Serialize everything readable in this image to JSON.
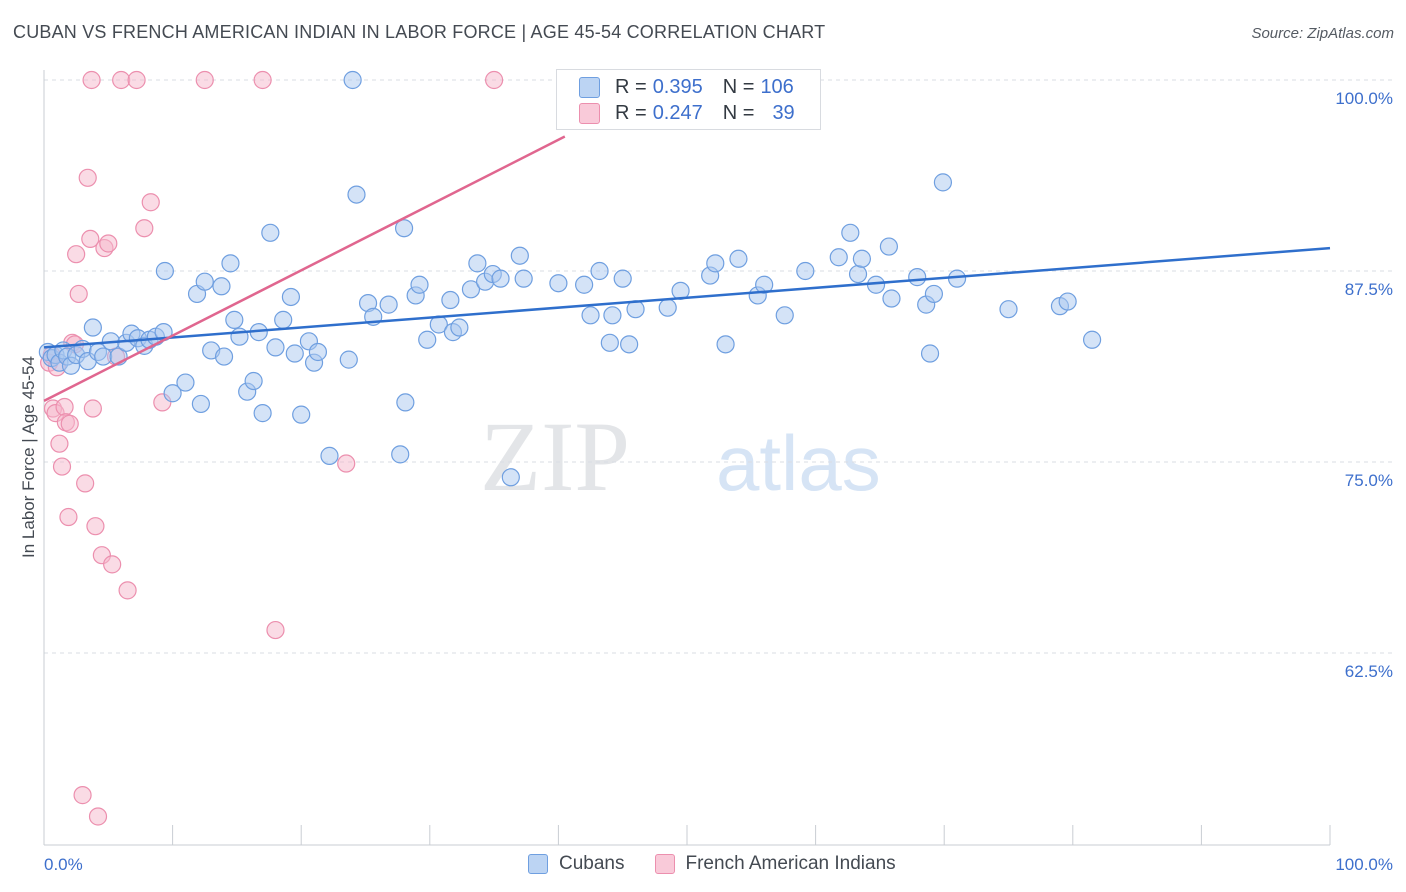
{
  "title": "CUBAN VS FRENCH AMERICAN INDIAN IN LABOR FORCE | AGE 45-54 CORRELATION CHART",
  "source": "Source: ZipAtlas.com",
  "watermark": {
    "zip": "ZIP",
    "atlas": "atlas"
  },
  "colors": {
    "cuban_fill": "#a9c8ef",
    "cuban_stroke": "#6f9fe0",
    "cuban_line": "#2f6fcc",
    "french_fill": "#f6b8cb",
    "french_stroke": "#ec8fae",
    "french_line": "#e0668f",
    "tick_label": "#3d6fcc",
    "grid": "#d9dde3"
  },
  "inset_legend": {
    "r_label": "R =",
    "n_label": "N =",
    "rows": [
      {
        "r": "0.395",
        "n": "106",
        "series": "Cubans"
      },
      {
        "r": "0.247",
        "n": "39",
        "series": "French American Indians"
      }
    ]
  },
  "bottom_legend": [
    "Cubans",
    "French American Indians"
  ],
  "chart_data": {
    "type": "scatter",
    "title": "CUBAN VS FRENCH AMERICAN INDIAN IN LABOR FORCE | AGE 45-54 CORRELATION CHART",
    "xlabel": "",
    "ylabel": "In Labor Force | Age 45-54",
    "xlim": [
      0,
      100
    ],
    "ylim": [
      51.5,
      102
    ],
    "x_tick_labels": [
      {
        "value": 0,
        "label": "0.0%"
      },
      {
        "value": 100,
        "label": "100.0%"
      }
    ],
    "y_tick_labels": [
      {
        "value": 100,
        "label": "100.0%"
      },
      {
        "value": 87.5,
        "label": "87.5%"
      },
      {
        "value": 75,
        "label": "75.0%"
      },
      {
        "value": 62.5,
        "label": "62.5%"
      }
    ],
    "grid": "horizontal dashed",
    "legend_placement": "bottom-center",
    "series": [
      {
        "name": "Cubans",
        "r": 0.395,
        "n": 106,
        "trend": {
          "x": [
            0,
            100
          ],
          "y": [
            82.5,
            89.0
          ]
        },
        "points": [
          [
            0.3,
            82.2
          ],
          [
            0.6,
            81.8
          ],
          [
            0.9,
            82.0
          ],
          [
            1.2,
            81.5
          ],
          [
            1.5,
            82.3
          ],
          [
            1.8,
            81.9
          ],
          [
            2.1,
            81.3
          ],
          [
            2.5,
            82.0
          ],
          [
            3.0,
            82.4
          ],
          [
            3.4,
            81.6
          ],
          [
            3.8,
            83.8
          ],
          [
            4.2,
            82.2
          ],
          [
            4.6,
            81.9
          ],
          [
            5.2,
            82.9
          ],
          [
            5.8,
            81.9
          ],
          [
            6.4,
            82.8
          ],
          [
            6.8,
            83.4
          ],
          [
            7.3,
            83.1
          ],
          [
            7.8,
            82.6
          ],
          [
            8.2,
            83.0
          ],
          [
            8.7,
            83.2
          ],
          [
            9.3,
            83.5
          ],
          [
            9.4,
            87.5
          ],
          [
            10.0,
            79.5
          ],
          [
            11.0,
            80.2
          ],
          [
            11.9,
            86.0
          ],
          [
            12.2,
            78.8
          ],
          [
            12.5,
            86.8
          ],
          [
            13.0,
            82.3
          ],
          [
            13.8,
            86.5
          ],
          [
            14.0,
            81.9
          ],
          [
            14.5,
            88.0
          ],
          [
            14.8,
            84.3
          ],
          [
            15.2,
            83.2
          ],
          [
            15.8,
            79.6
          ],
          [
            16.3,
            80.3
          ],
          [
            16.7,
            83.5
          ],
          [
            17.0,
            78.2
          ],
          [
            17.6,
            90.0
          ],
          [
            18.0,
            82.5
          ],
          [
            18.6,
            84.3
          ],
          [
            19.2,
            85.8
          ],
          [
            19.5,
            82.1
          ],
          [
            20.0,
            78.1
          ],
          [
            20.6,
            82.9
          ],
          [
            21.0,
            81.5
          ],
          [
            21.3,
            82.2
          ],
          [
            22.2,
            75.4
          ],
          [
            23.7,
            81.7
          ],
          [
            24.0,
            100.0
          ],
          [
            24.3,
            92.5
          ],
          [
            25.2,
            85.4
          ],
          [
            25.6,
            84.5
          ],
          [
            26.8,
            85.3
          ],
          [
            27.7,
            75.5
          ],
          [
            28.0,
            90.3
          ],
          [
            28.1,
            78.9
          ],
          [
            28.9,
            85.9
          ],
          [
            29.2,
            86.6
          ],
          [
            29.8,
            83.0
          ],
          [
            30.7,
            84.0
          ],
          [
            31.6,
            85.6
          ],
          [
            31.8,
            83.5
          ],
          [
            32.3,
            83.8
          ],
          [
            33.2,
            86.3
          ],
          [
            33.7,
            88.0
          ],
          [
            34.3,
            86.8
          ],
          [
            34.9,
            87.3
          ],
          [
            35.5,
            87.0
          ],
          [
            36.3,
            74.0
          ],
          [
            37.0,
            88.5
          ],
          [
            37.3,
            87.0
          ],
          [
            40.0,
            86.7
          ],
          [
            42.0,
            86.6
          ],
          [
            42.5,
            84.6
          ],
          [
            43.2,
            87.5
          ],
          [
            44.0,
            82.8
          ],
          [
            44.2,
            84.6
          ],
          [
            45.0,
            87.0
          ],
          [
            45.5,
            82.7
          ],
          [
            46.0,
            85.0
          ],
          [
            48.5,
            85.1
          ],
          [
            49.5,
            86.2
          ],
          [
            51.8,
            87.2
          ],
          [
            52.2,
            88.0
          ],
          [
            53.0,
            82.7
          ],
          [
            54.0,
            88.3
          ],
          [
            55.5,
            85.9
          ],
          [
            56.0,
            86.6
          ],
          [
            57.6,
            84.6
          ],
          [
            59.2,
            87.5
          ],
          [
            61.8,
            88.4
          ],
          [
            62.7,
            90.0
          ],
          [
            63.3,
            87.3
          ],
          [
            63.6,
            88.3
          ],
          [
            64.7,
            86.6
          ],
          [
            65.7,
            89.1
          ],
          [
            65.9,
            85.7
          ],
          [
            67.9,
            87.1
          ],
          [
            68.6,
            85.3
          ],
          [
            68.9,
            82.1
          ],
          [
            69.2,
            86.0
          ],
          [
            69.9,
            93.3
          ],
          [
            71.0,
            87.0
          ],
          [
            75.0,
            85.0
          ],
          [
            79.0,
            85.2
          ],
          [
            79.6,
            85.5
          ],
          [
            81.5,
            83.0
          ]
        ]
      },
      {
        "name": "French American Indians",
        "r": 0.247,
        "n": 39,
        "trend": {
          "x": [
            0,
            40.5
          ],
          "y": [
            79.0,
            96.3
          ]
        },
        "points": [
          [
            0.4,
            81.5
          ],
          [
            0.6,
            82.0
          ],
          [
            0.7,
            78.5
          ],
          [
            0.9,
            78.2
          ],
          [
            1.0,
            81.2
          ],
          [
            1.2,
            76.2
          ],
          [
            1.4,
            74.7
          ],
          [
            1.6,
            78.6
          ],
          [
            1.7,
            77.6
          ],
          [
            1.9,
            71.4
          ],
          [
            2.0,
            77.5
          ],
          [
            2.2,
            82.8
          ],
          [
            2.4,
            82.7
          ],
          [
            2.5,
            88.6
          ],
          [
            2.7,
            86.0
          ],
          [
            3.0,
            53.2
          ],
          [
            3.2,
            73.6
          ],
          [
            3.4,
            93.6
          ],
          [
            3.6,
            89.6
          ],
          [
            3.7,
            100.0
          ],
          [
            3.8,
            78.5
          ],
          [
            4.0,
            70.8
          ],
          [
            4.2,
            51.8
          ],
          [
            4.5,
            68.9
          ],
          [
            4.7,
            89.0
          ],
          [
            5.0,
            89.3
          ],
          [
            5.3,
            68.3
          ],
          [
            5.6,
            81.9
          ],
          [
            6.0,
            100.0
          ],
          [
            6.5,
            66.6
          ],
          [
            7.2,
            100.0
          ],
          [
            7.8,
            90.3
          ],
          [
            8.3,
            92.0
          ],
          [
            9.2,
            78.9
          ],
          [
            12.5,
            100.0
          ],
          [
            17.0,
            100.0
          ],
          [
            18.0,
            64.0
          ],
          [
            23.5,
            74.9
          ],
          [
            35.0,
            100.0
          ]
        ]
      }
    ]
  }
}
